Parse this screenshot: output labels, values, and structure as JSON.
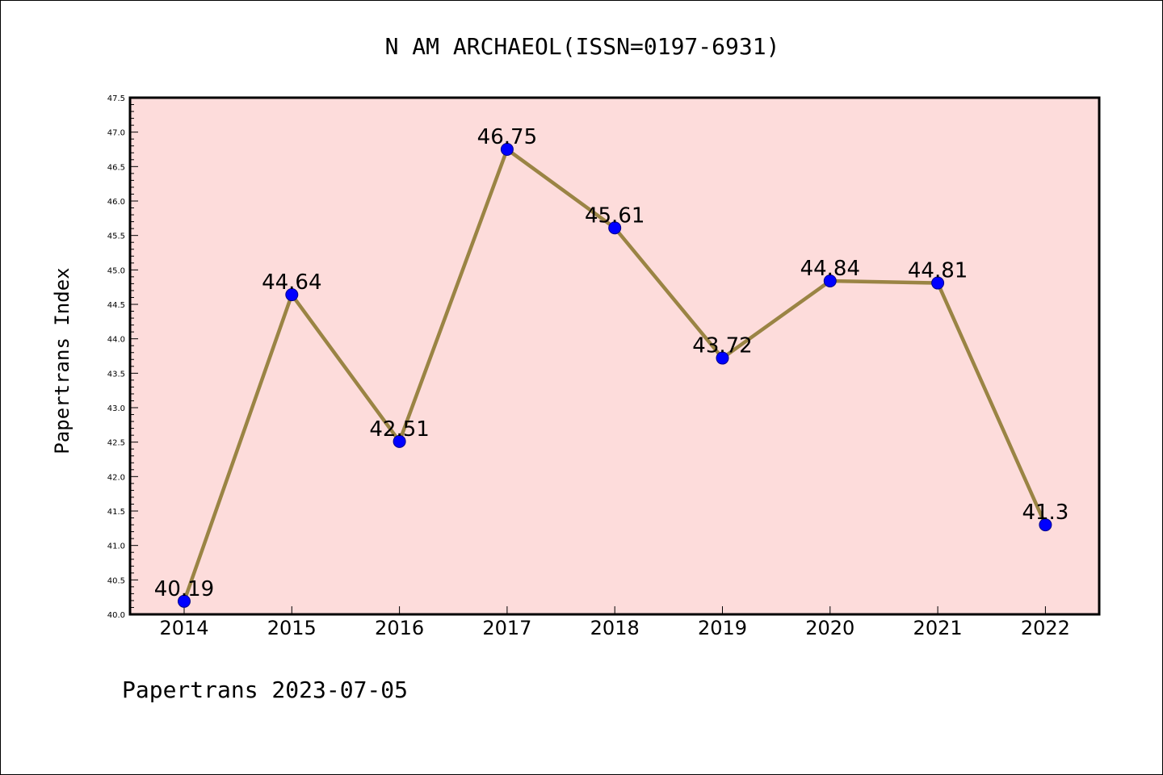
{
  "chart_data": {
    "type": "line",
    "title": "N AM ARCHAEOL(ISSN=0197-6931)",
    "xlabel": "",
    "ylabel": "Papertrans Index",
    "footer": "Papertrans 2023-07-05",
    "categories": [
      "2014",
      "2015",
      "2016",
      "2017",
      "2018",
      "2019",
      "2020",
      "2021",
      "2022"
    ],
    "values": [
      40.19,
      44.64,
      42.51,
      46.75,
      45.61,
      43.72,
      44.84,
      44.81,
      41.3
    ],
    "data_labels": [
      "40.19",
      "44.64",
      "42.51",
      "46.75",
      "45.61",
      "43.72",
      "44.84",
      "44.81",
      "41.3"
    ],
    "ylim": [
      40.0,
      47.5
    ],
    "yticks": [
      "40.0",
      "40.5",
      "41.0",
      "41.5",
      "42.0",
      "42.5",
      "43.0",
      "43.5",
      "44.0",
      "44.5",
      "45.0",
      "45.5",
      "46.0",
      "46.5",
      "47.0",
      "47.5"
    ],
    "grid": false,
    "legend": "none",
    "colors": {
      "plot_background": "#fddcdb",
      "line": "#9a8444",
      "marker": "#0000ff",
      "marker_edge": "#00008b",
      "axes": "#000000"
    }
  }
}
